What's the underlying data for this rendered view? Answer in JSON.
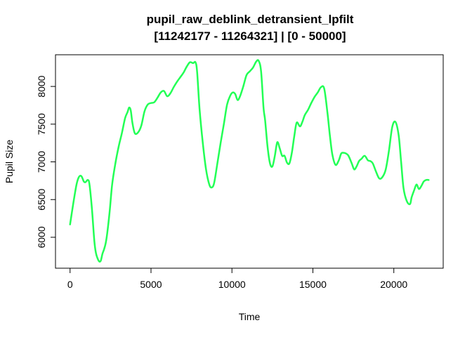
{
  "chart_data": {
    "type": "line",
    "title": "pupil_raw_deblink_detransient_lpfilt",
    "subtitle": "[11242177 - 11264321] | [0 - 50000]",
    "xlabel": "Time",
    "ylabel": "Pupil Size",
    "xticks": [
      0,
      5000,
      10000,
      15000,
      20000
    ],
    "yticks": [
      6000,
      6500,
      7000,
      7500,
      8000
    ],
    "xlim": [
      -900,
      23050
    ],
    "ylim": [
      5590,
      8420
    ],
    "grid": false,
    "legend": "none",
    "series": [
      {
        "color": "#22ff55",
        "x": [
          0,
          200,
          400,
          550,
          700,
          850,
          950,
          1100,
          1200,
          1350,
          1500,
          1600,
          1700,
          1800,
          1900,
          2000,
          2100,
          2200,
          2300,
          2450,
          2600,
          2800,
          3000,
          3200,
          3400,
          3550,
          3650,
          3750,
          3850,
          4000,
          4200,
          4400,
          4600,
          4800,
          5000,
          5200,
          5400,
          5600,
          5800,
          6000,
          6200,
          6400,
          6600,
          6800,
          7000,
          7200,
          7400,
          7600,
          7750,
          7850,
          8000,
          8200,
          8400,
          8600,
          8750,
          8900,
          9100,
          9300,
          9500,
          9700,
          9900,
          10050,
          10200,
          10350,
          10500,
          10700,
          10900,
          11100,
          11300,
          11500,
          11650,
          11800,
          11950,
          12050,
          12200,
          12350,
          12500,
          12650,
          12800,
          12950,
          13100,
          13250,
          13400,
          13550,
          13700,
          13850,
          14000,
          14200,
          14350,
          14500,
          14700,
          14900,
          15100,
          15300,
          15500,
          15700,
          15900,
          16050,
          16200,
          16400,
          16600,
          16750,
          16900,
          17050,
          17200,
          17400,
          17550,
          17700,
          17850,
          18000,
          18200,
          18400,
          18550,
          18700,
          18900,
          19100,
          19300,
          19500,
          19700,
          19900,
          20100,
          20300,
          20450,
          20600,
          20800,
          21000,
          21100,
          21250,
          21400,
          21550,
          21700,
          21850,
          22000,
          22150
        ],
        "values": [
          6170,
          6450,
          6700,
          6800,
          6810,
          6740,
          6730,
          6760,
          6700,
          6380,
          5950,
          5790,
          5720,
          5680,
          5690,
          5780,
          5840,
          5920,
          6060,
          6350,
          6700,
          6980,
          7200,
          7380,
          7580,
          7660,
          7720,
          7680,
          7520,
          7380,
          7390,
          7480,
          7670,
          7760,
          7780,
          7790,
          7850,
          7920,
          7940,
          7870,
          7910,
          7990,
          8060,
          8120,
          8180,
          8260,
          8320,
          8310,
          8320,
          8190,
          7700,
          7250,
          6900,
          6700,
          6660,
          6720,
          6980,
          7250,
          7500,
          7760,
          7880,
          7920,
          7900,
          7820,
          7870,
          8000,
          8150,
          8200,
          8250,
          8330,
          8340,
          8200,
          7720,
          7550,
          7200,
          6980,
          6940,
          7080,
          7260,
          7180,
          7080,
          7080,
          6990,
          6980,
          7120,
          7340,
          7520,
          7470,
          7530,
          7620,
          7690,
          7780,
          7860,
          7920,
          7990,
          7970,
          7650,
          7350,
          7100,
          6960,
          7020,
          7110,
          7120,
          7110,
          7080,
          6980,
          6900,
          6940,
          7010,
          7040,
          7080,
          7020,
          7010,
          6980,
          6870,
          6780,
          6800,
          6900,
          7150,
          7460,
          7530,
          7350,
          7000,
          6650,
          6480,
          6440,
          6530,
          6620,
          6700,
          6640,
          6680,
          6740,
          6760,
          6760
        ]
      }
    ]
  }
}
